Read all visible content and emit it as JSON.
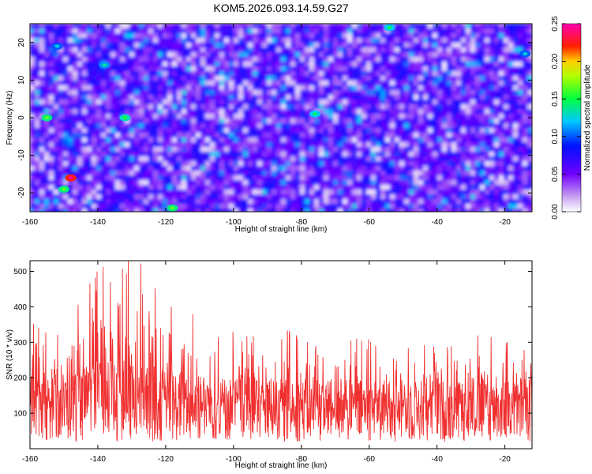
{
  "figure": {
    "title": "KOM5.2026.093.14.59.G27"
  },
  "chart_data": [
    {
      "type": "heatmap",
      "title": "KOM5.2026.093.14.59.G27",
      "xlabel": "Height of straight line (km)",
      "ylabel": "Frequency (Hz)",
      "xlim": [
        -160,
        -12
      ],
      "ylim": [
        -25,
        25
      ],
      "x_ticks": [
        "-160",
        "-140",
        "-120",
        "-100",
        "-80",
        "-60",
        "-40",
        "-20"
      ],
      "y_ticks": [
        "20",
        "10",
        "0",
        "-10",
        "-20"
      ],
      "colorbar": {
        "label": "Normalized spectral amplitude",
        "range": [
          0,
          0.25
        ],
        "ticks": [
          "0.00",
          "0.05",
          "0.10",
          "0.15",
          "0.20",
          "0.25"
        ],
        "colormap": "white-purple-blue-cyan-green-yellow-red-magenta"
      },
      "z_description_peaks": [
        {
          "x": -148,
          "y": -16,
          "z": 0.22
        },
        {
          "x": -155,
          "y": 0,
          "z": 0.14
        },
        {
          "x": -132,
          "y": 0,
          "z": 0.13
        },
        {
          "x": -150,
          "y": -19,
          "z": 0.14
        },
        {
          "x": -138,
          "y": 14,
          "z": 0.11
        },
        {
          "x": -118,
          "y": -24,
          "z": 0.14
        },
        {
          "x": -76,
          "y": 1,
          "z": 0.12
        },
        {
          "x": -54,
          "y": 24,
          "z": 0.12
        },
        {
          "x": -152,
          "y": 19,
          "z": 0.1
        },
        {
          "x": -14,
          "y": 17,
          "z": 0.1
        }
      ],
      "grid": false
    },
    {
      "type": "line",
      "xlabel": "Height of straight line (km)",
      "ylabel": "SNR (10 * v/v)",
      "xlim": [
        -160,
        -12
      ],
      "ylim": [
        0,
        530
      ],
      "x_ticks": [
        "-160",
        "-140",
        "-120",
        "-100",
        "-80",
        "-60",
        "-40",
        "-20"
      ],
      "y_ticks": [
        "100",
        "200",
        "300",
        "400",
        "500"
      ],
      "series": [
        {
          "color": "#f03030",
          "envelope_x": [
            -160,
            -150,
            -140,
            -135,
            -130,
            -120,
            -110,
            -100,
            -80,
            -60,
            -40,
            -20,
            -12
          ],
          "envelope_max": [
            340,
            380,
            530,
            510,
            520,
            480,
            380,
            330,
            340,
            320,
            310,
            320,
            300
          ],
          "baseline": [
            120,
            125,
            140,
            145,
            140,
            130,
            120,
            115,
            110,
            110,
            110,
            110,
            105
          ]
        }
      ],
      "grid": false
    }
  ],
  "colors": {
    "line": "#f03030",
    "frame": "#000000"
  }
}
